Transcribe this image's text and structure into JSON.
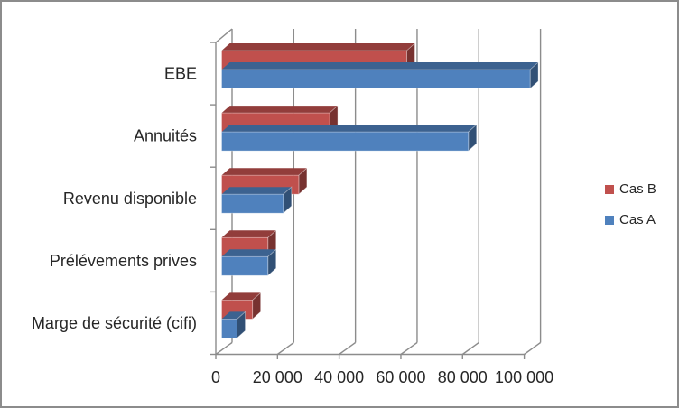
{
  "window": {
    "background": "#FFFFFF",
    "border_color": "#8C8C8C"
  },
  "chart_data": {
    "type": "bar",
    "orientation": "horizontal",
    "style": "3d",
    "title": "",
    "categories": [
      "EBE",
      "Annuités",
      "Revenu disponible",
      "Prélévements prives",
      "Marge de sécurité (cifi)"
    ],
    "series": [
      {
        "name": "Cas B",
        "color": "#C0504D",
        "values": [
          60000,
          35000,
          25000,
          15000,
          10000
        ]
      },
      {
        "name": "Cas A",
        "color": "#4F81BD",
        "values": [
          100000,
          80000,
          20000,
          15000,
          5000
        ]
      }
    ],
    "x_axis": {
      "min": 0,
      "max": 100000,
      "tick_values": [
        0,
        20000,
        40000,
        60000,
        80000,
        100000
      ],
      "tick_labels": [
        "0",
        "20 000",
        "40 000",
        "60 000",
        "80 000",
        "100 000"
      ]
    },
    "y_axis": {
      "label": ""
    },
    "legend": {
      "position": "right"
    },
    "grid": true,
    "line_color": "#8C8C8C",
    "text_color": "#262626"
  }
}
